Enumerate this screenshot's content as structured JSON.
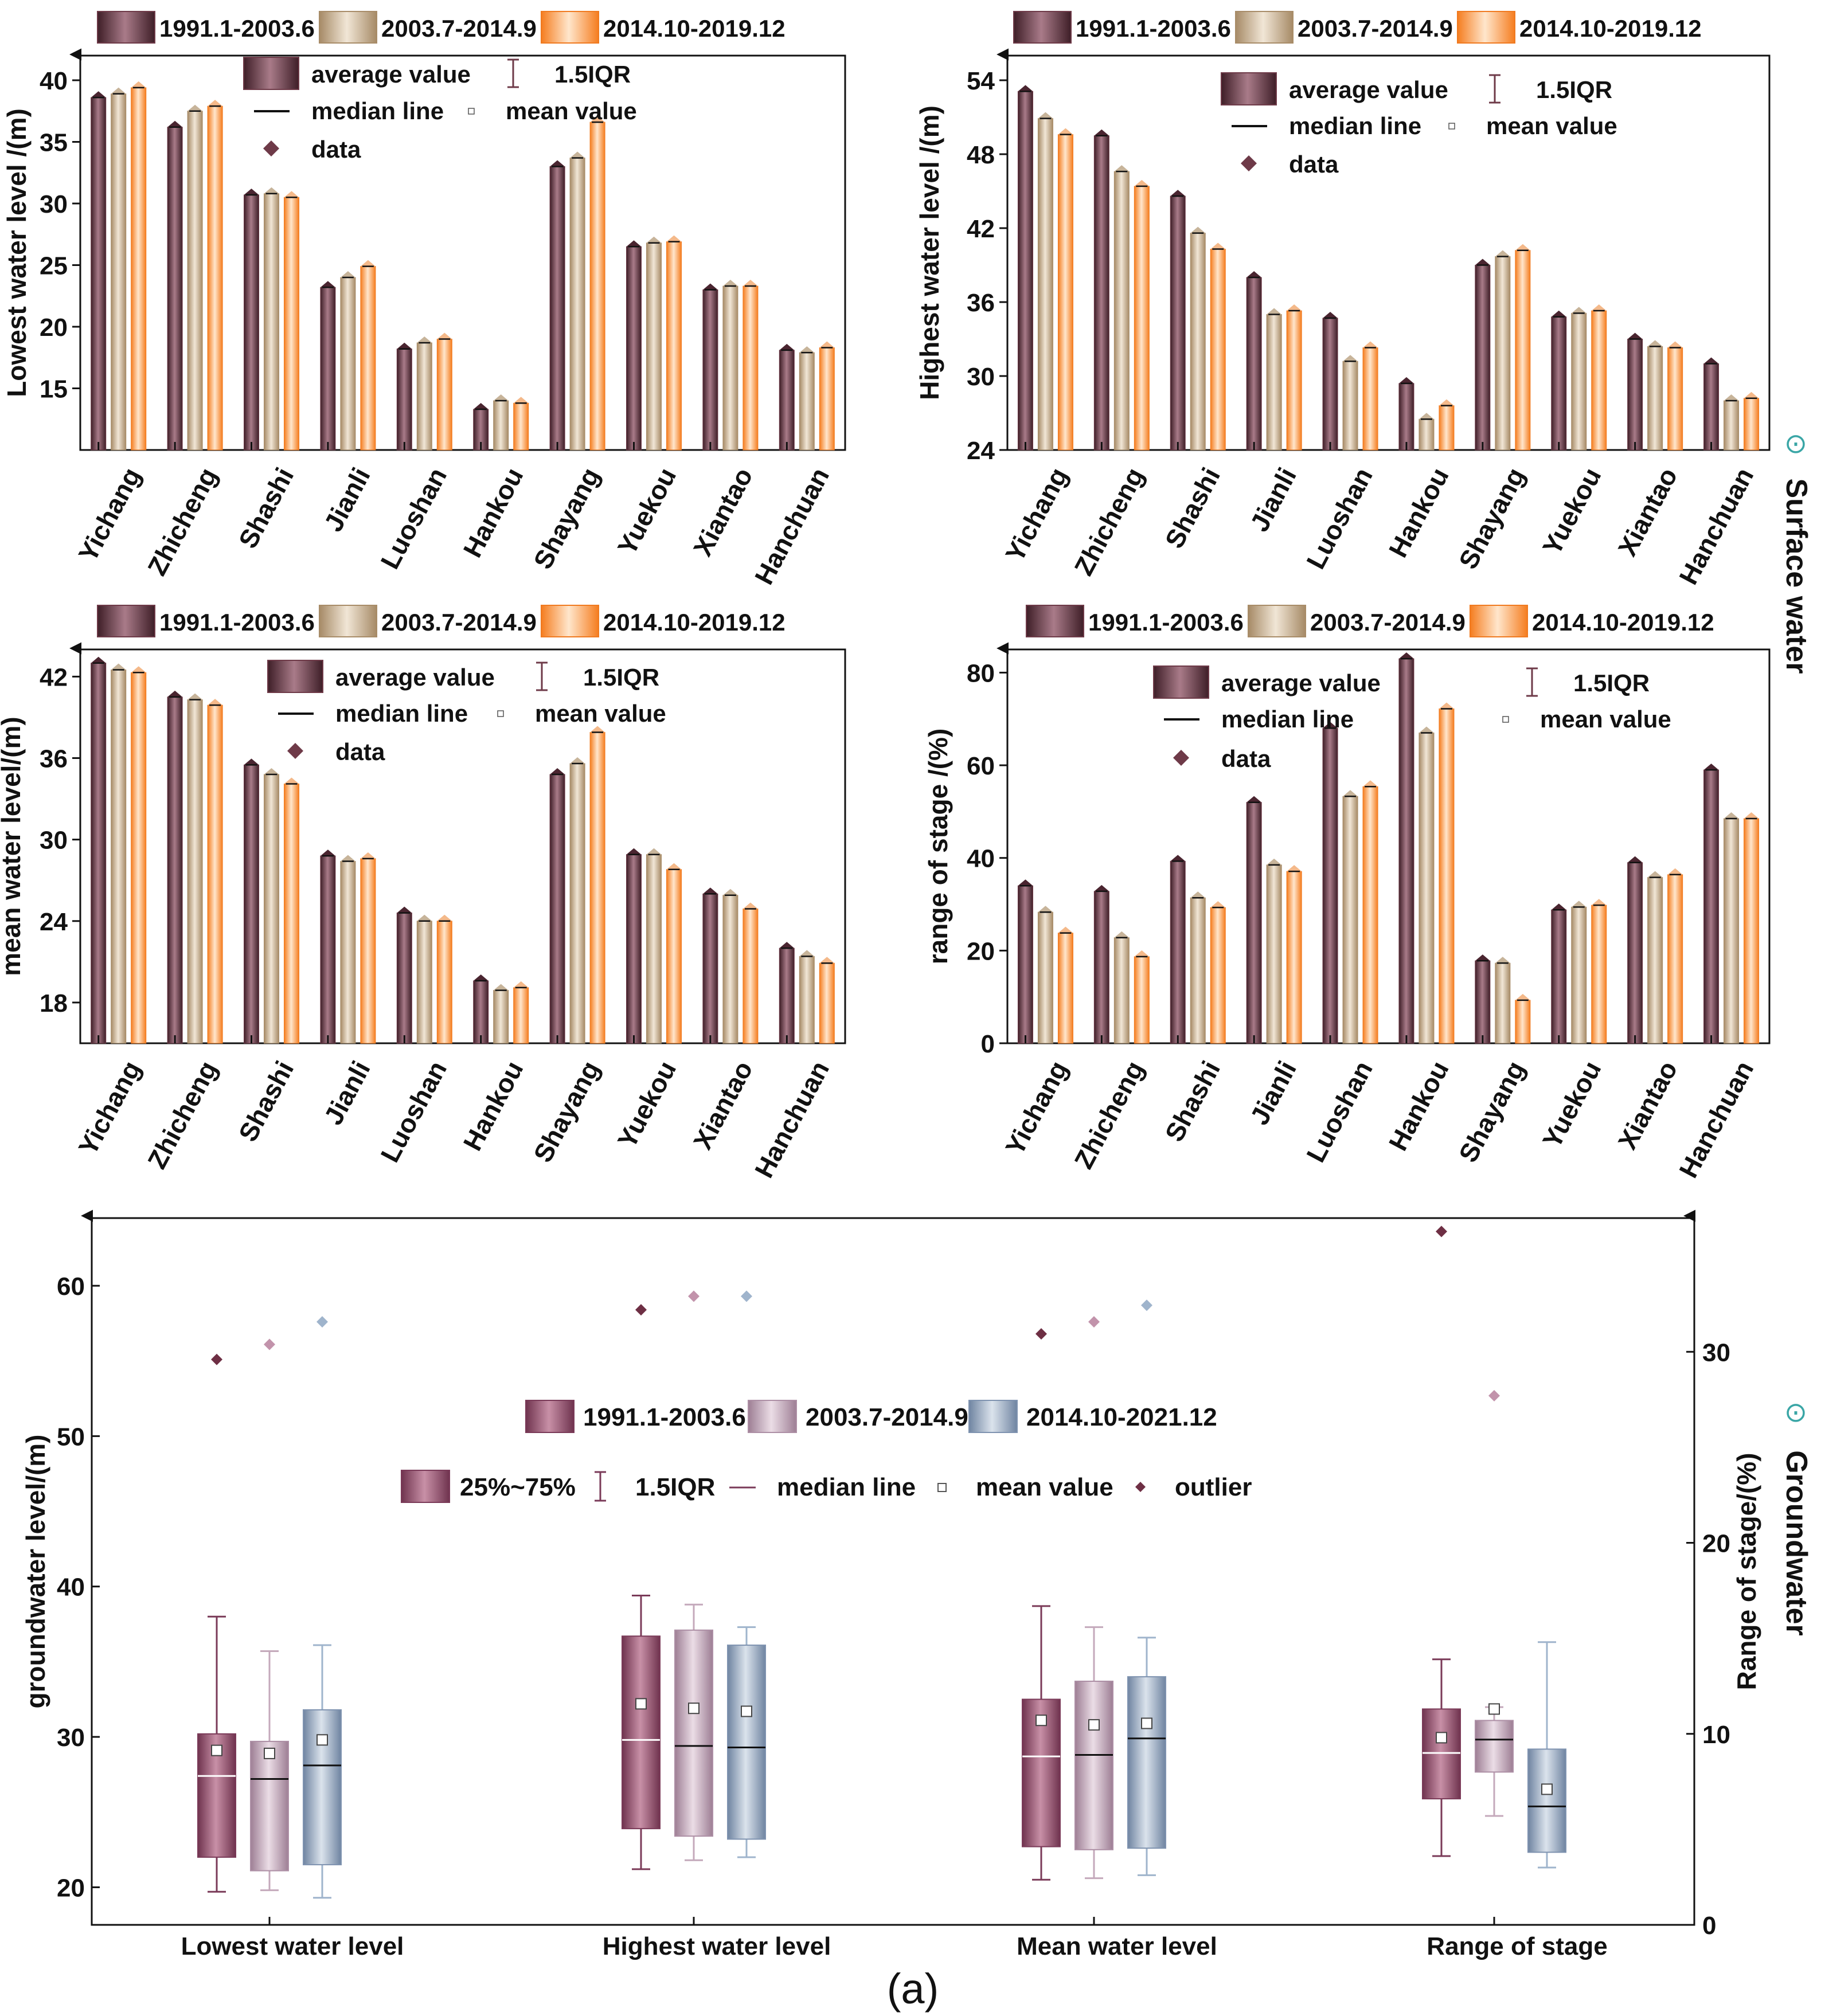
{
  "labels": {
    "surface_water": "Surface water",
    "groundwater": "Groundwater",
    "figure_label": "(a)",
    "side_marker": "⊙"
  },
  "colors": {
    "p1": "#6e3a48",
    "p2": "#c9ad8a",
    "p3": "#f79a45",
    "g1": "#8a4a63",
    "g2": "#b79aae",
    "g3": "#8d9fb8",
    "teal": "#3aa6a6"
  },
  "surface_legend": {
    "periods": [
      "1991.1-2003.6",
      "2003.7-2014.9",
      "2014.10-2019.12"
    ],
    "average": "average value",
    "iqr": "1.5IQR",
    "median": "median line",
    "mean": "mean value",
    "data": "data"
  },
  "ground_legend": {
    "periods": [
      "1991.1-2003.6",
      "2003.7-2014.9",
      "2014.10-2021.12"
    ],
    "box": "25%~75%",
    "iqr": "1.5IQR",
    "median": "median line",
    "mean": "mean value",
    "outlier": "outlier"
  },
  "chart_data": [
    {
      "id": "lowest",
      "type": "bar",
      "ylabel": "Lowest water level /(m)",
      "ylim": [
        10,
        42
      ],
      "yticks": [
        15,
        20,
        25,
        30,
        35,
        40
      ],
      "categories": [
        "Yichang",
        "Zhicheng",
        "Shashi",
        "Jianli",
        "Luoshan",
        "Hankou",
        "Shayang",
        "Yuekou",
        "Xiantao",
        "Hanchuan"
      ],
      "series": [
        {
          "name": "1991.1-2003.6",
          "values": [
            38.6,
            36.2,
            30.7,
            23.2,
            18.2,
            13.3,
            33.0,
            26.5,
            23.0,
            18.1
          ]
        },
        {
          "name": "2003.7-2014.9",
          "values": [
            38.9,
            37.5,
            30.8,
            24.0,
            18.7,
            14.0,
            33.7,
            26.8,
            23.3,
            17.9
          ]
        },
        {
          "name": "2014.10-2019.12",
          "values": [
            39.4,
            37.9,
            30.5,
            24.9,
            19.0,
            13.8,
            36.6,
            26.9,
            23.3,
            18.3
          ]
        }
      ]
    },
    {
      "id": "highest",
      "type": "bar",
      "ylabel": "Highest water level /(m)",
      "ylim": [
        24,
        56
      ],
      "yticks": [
        24,
        30,
        36,
        42,
        48,
        54
      ],
      "categories": [
        "Yichang",
        "Zhicheng",
        "Shashi",
        "Jianli",
        "Luoshan",
        "Hankou",
        "Shayang",
        "Yuekou",
        "Xiantao",
        "Hanchuan"
      ],
      "series": [
        {
          "name": "1991.1-2003.6",
          "values": [
            53.1,
            49.5,
            44.6,
            38.0,
            34.7,
            29.4,
            39.0,
            34.8,
            33.0,
            31.0
          ]
        },
        {
          "name": "2003.7-2014.9",
          "values": [
            50.9,
            46.6,
            41.6,
            35.0,
            31.2,
            26.5,
            39.7,
            35.1,
            32.4,
            28.0
          ]
        },
        {
          "name": "2014.10-2019.12",
          "values": [
            49.6,
            45.4,
            40.3,
            35.3,
            32.3,
            27.6,
            40.2,
            35.3,
            32.3,
            28.2
          ]
        }
      ]
    },
    {
      "id": "mean",
      "type": "bar",
      "ylabel": "mean water level/(m)",
      "ylim": [
        15,
        44
      ],
      "yticks": [
        18,
        24,
        30,
        36,
        42
      ],
      "categories": [
        "Yichang",
        "Zhicheng",
        "Shashi",
        "Jianli",
        "Luoshan",
        "Hankou",
        "Shayang",
        "Yuekou",
        "Xiantao",
        "Hanchuan"
      ],
      "series": [
        {
          "name": "1991.1-2003.6",
          "values": [
            43.0,
            40.5,
            35.5,
            28.8,
            24.6,
            19.6,
            34.8,
            28.9,
            26.0,
            22.0
          ]
        },
        {
          "name": "2003.7-2014.9",
          "values": [
            42.5,
            40.3,
            34.8,
            28.4,
            24.0,
            18.9,
            35.6,
            28.9,
            25.9,
            21.4
          ]
        },
        {
          "name": "2014.10-2019.12",
          "values": [
            42.3,
            39.9,
            34.1,
            28.6,
            24.0,
            19.1,
            37.9,
            27.8,
            24.9,
            20.9
          ]
        }
      ]
    },
    {
      "id": "range",
      "type": "bar",
      "ylabel": "range of stage /(%)",
      "ylim": [
        0,
        85
      ],
      "yticks": [
        0,
        20,
        40,
        60,
        80
      ],
      "categories": [
        "Yichang",
        "Zhicheng",
        "Shashi",
        "Jianli",
        "Luoshan",
        "Hankou",
        "Shayang",
        "Yuekou",
        "Xiantao",
        "Hanchuan"
      ],
      "series": [
        {
          "name": "1991.1-2003.6",
          "values": [
            34.0,
            32.8,
            39.3,
            52.0,
            68.0,
            83.0,
            17.8,
            28.8,
            39.0,
            59.0
          ]
        },
        {
          "name": "2003.7-2014.9",
          "values": [
            28.3,
            22.8,
            31.4,
            38.5,
            53.3,
            67.0,
            17.3,
            29.4,
            35.8,
            48.5
          ]
        },
        {
          "name": "2014.10-2019.12",
          "values": [
            23.8,
            18.7,
            29.3,
            37.1,
            55.4,
            72.2,
            9.3,
            29.8,
            36.4,
            48.5
          ]
        }
      ]
    },
    {
      "id": "groundwater",
      "type": "box",
      "ylabel": "groundwater level/(m)",
      "ylabel_right": "Range of stage/(%)",
      "ylim": [
        17.5,
        64.5
      ],
      "yticks": [
        20,
        30,
        40,
        50,
        60
      ],
      "ylim_right": [
        0,
        37
      ],
      "yticks_right": [
        0,
        10,
        20,
        30
      ],
      "categories": [
        "Lowest water level",
        "Highest water level",
        "Mean water level",
        "Range of stage"
      ],
      "series": [
        {
          "name": "1991.1-2003.6",
          "boxes": [
            {
              "whisker_low": 19.7,
              "q1": 22.0,
              "median": 27.4,
              "q3": 30.2,
              "whisker_high": 38.0,
              "mean": 29.1,
              "outlier": 55.1
            },
            {
              "whisker_low": 21.2,
              "q1": 23.9,
              "median": 29.8,
              "q3": 36.7,
              "whisker_high": 39.4,
              "mean": 32.2,
              "outlier": 58.4
            },
            {
              "whisker_low": 20.5,
              "q1": 22.7,
              "median": 28.7,
              "q3": 32.5,
              "whisker_high": 38.7,
              "mean": 31.1,
              "outlier": 56.8
            },
            {
              "whisker_low": 3.6,
              "q1": 6.6,
              "median": 9.0,
              "q3": 11.3,
              "whisker_high": 13.9,
              "mean": 9.8,
              "outlier": 36.3
            }
          ]
        },
        {
          "name": "2003.7-2014.9",
          "boxes": [
            {
              "whisker_low": 19.8,
              "q1": 21.1,
              "median": 27.2,
              "q3": 29.7,
              "whisker_high": 35.7,
              "mean": 28.9,
              "outlier": 56.1
            },
            {
              "whisker_low": 21.8,
              "q1": 23.4,
              "median": 29.4,
              "q3": 37.1,
              "whisker_high": 38.8,
              "mean": 31.9,
              "outlier": 59.3
            },
            {
              "whisker_low": 20.6,
              "q1": 22.5,
              "median": 28.8,
              "q3": 33.7,
              "whisker_high": 37.3,
              "mean": 30.8,
              "outlier": 57.6
            },
            {
              "whisker_low": 5.7,
              "q1": 8.0,
              "median": 9.7,
              "q3": 10.7,
              "whisker_high": 11.4,
              "mean": 11.3,
              "outlier": 27.7
            }
          ]
        },
        {
          "name": "2014.10-2021.12",
          "boxes": [
            {
              "whisker_low": 19.3,
              "q1": 21.5,
              "median": 28.1,
              "q3": 31.8,
              "whisker_high": 36.1,
              "mean": 29.8,
              "outlier": 57.6
            },
            {
              "whisker_low": 22.0,
              "q1": 23.2,
              "median": 29.3,
              "q3": 36.1,
              "whisker_high": 37.3,
              "mean": 31.7,
              "outlier": 59.3
            },
            {
              "whisker_low": 20.8,
              "q1": 22.6,
              "median": 29.9,
              "q3": 34.0,
              "whisker_high": 36.6,
              "mean": 30.9,
              "outlier": 58.7
            },
            {
              "whisker_low": 3.0,
              "q1": 3.8,
              "median": 6.2,
              "q3": 9.2,
              "whisker_high": 14.8,
              "mean": 7.1,
              "outlier": null
            }
          ]
        }
      ]
    }
  ]
}
